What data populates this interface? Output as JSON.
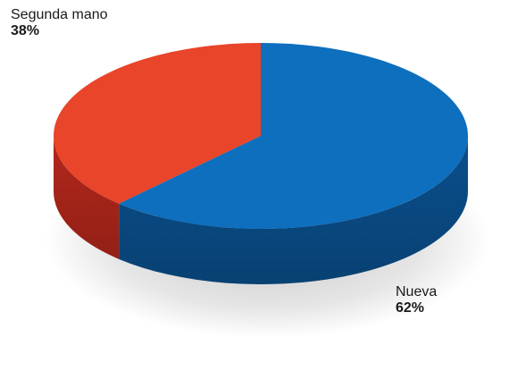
{
  "chart_data": {
    "type": "pie",
    "style": "3d",
    "slices": [
      {
        "label": "Segunda mano",
        "value": 38,
        "value_label": "38%",
        "color": "#e8452a",
        "side_color": "#b3271b"
      },
      {
        "label": "Nueva",
        "value": 62,
        "value_label": "62%",
        "color": "#0d6fbd",
        "side_color": "#0a4f8c"
      }
    ]
  }
}
